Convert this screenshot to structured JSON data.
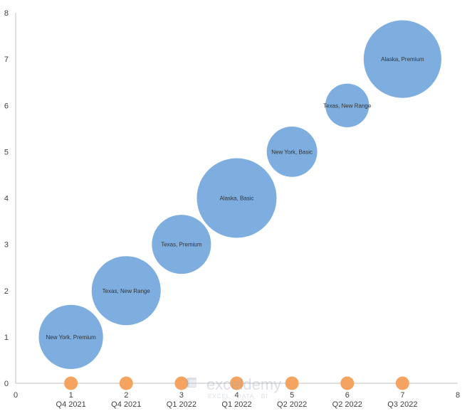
{
  "chart_data": {
    "type": "bubble",
    "title": "",
    "xlabel": "",
    "ylabel": "",
    "xlim": [
      0,
      8
    ],
    "ylim": [
      0,
      8
    ],
    "x_ticks": [
      0,
      1,
      2,
      3,
      4,
      5,
      6,
      7,
      8
    ],
    "y_ticks": [
      0,
      1,
      2,
      3,
      4,
      5,
      6,
      7,
      8
    ],
    "grid": false,
    "legend": "none",
    "series": [
      {
        "color": "#7eaedf",
        "points": [
          {
            "x": 1,
            "y": 1,
            "size": 0.65,
            "label": "New York, Premium"
          },
          {
            "x": 2,
            "y": 2,
            "size": 0.75,
            "label": "Texas, New Range"
          },
          {
            "x": 3,
            "y": 3,
            "size": 0.55,
            "label": "Texas, Premium"
          },
          {
            "x": 4,
            "y": 4,
            "size": 1.0,
            "label": "Alaska, Basic"
          },
          {
            "x": 5,
            "y": 5,
            "size": 0.4,
            "label": "New York, Basic"
          },
          {
            "x": 6,
            "y": 6,
            "size": 0.3,
            "label": "Texas, New Range"
          },
          {
            "x": 7,
            "y": 7,
            "size": 0.95,
            "label": "Alaska, Premium"
          }
        ]
      },
      {
        "color": "#f4a460",
        "points": [
          {
            "x": 1,
            "y": 0,
            "size": 0.01
          },
          {
            "x": 2,
            "y": 0,
            "size": 0.01
          },
          {
            "x": 3,
            "y": 0,
            "size": 0.01
          },
          {
            "x": 4,
            "y": 0,
            "size": 0.01
          },
          {
            "x": 5,
            "y": 0,
            "size": 0.01
          },
          {
            "x": 6,
            "y": 0,
            "size": 0.01
          },
          {
            "x": 7,
            "y": 0,
            "size": 0.01
          }
        ]
      }
    ],
    "category_labels": [
      {
        "x": 1,
        "label": "Q4 2021"
      },
      {
        "x": 2,
        "label": "Q4 2021"
      },
      {
        "x": 3,
        "label": "Q1 2022"
      },
      {
        "x": 4,
        "label": "Q1 2022"
      },
      {
        "x": 5,
        "label": "Q2 2022"
      },
      {
        "x": 6,
        "label": "Q2 2022"
      },
      {
        "x": 7,
        "label": "Q3 2022"
      }
    ]
  },
  "watermark": {
    "name": "exceldemy",
    "tagline": "EXCEL · DATA · BI"
  },
  "colors": {
    "axis": "#bfbfbf",
    "bubble_main": "#7eaedf",
    "bubble_marker": "#f4a460"
  }
}
